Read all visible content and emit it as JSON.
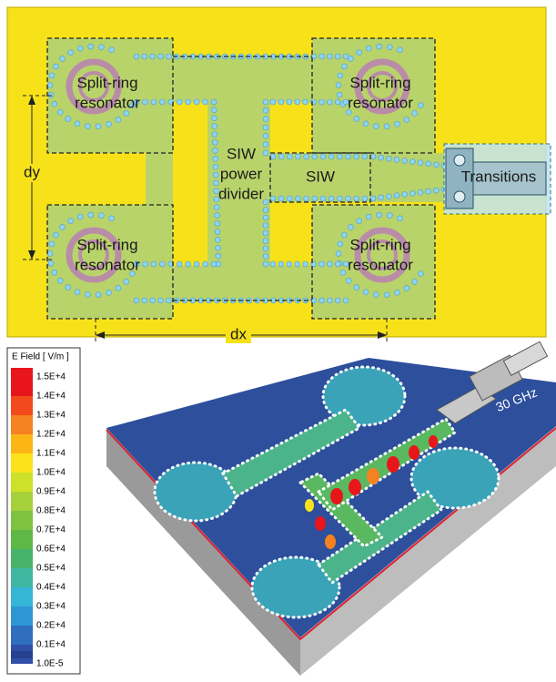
{
  "diagram": {
    "resonators": [
      {
        "lines": [
          "Split-ring",
          "resonator"
        ]
      },
      {
        "lines": [
          "Split-ring",
          "resonator"
        ]
      },
      {
        "lines": [
          "Split-ring",
          "resonator"
        ]
      },
      {
        "lines": [
          "Split-ring",
          "resonator"
        ]
      }
    ],
    "divider": {
      "lines": [
        "SIW",
        "power",
        "divider"
      ]
    },
    "siw": "SIW",
    "transitions": "Transitions",
    "dy": "dy",
    "dx": "dx"
  },
  "field_plot": {
    "legend": {
      "title": "E Field [ V/m ]",
      "labels": [
        "1.5E+4",
        "1.4E+4",
        "1.3E+4",
        "1.2E+4",
        "1.1E+4",
        "1.0E+4",
        "0.9E+4",
        "0.8E+4",
        "0.7E+4",
        "0.6E+4",
        "0.5E+4",
        "0.4E+4",
        "0.3E+4",
        "0.2E+4",
        "0.1E+4",
        "1.0E-5"
      ],
      "colors": [
        "#e8161b",
        "#f24a1c",
        "#f58220",
        "#fbb616",
        "#fce21b",
        "#cde02a",
        "#a6d13a",
        "#7fc242",
        "#5db846",
        "#47b26a",
        "#3fb7a0",
        "#35b6d6",
        "#2f96d4",
        "#2f6fbe",
        "#2f4fa8",
        "#27408f"
      ]
    },
    "frequency": "30 GHz"
  }
}
